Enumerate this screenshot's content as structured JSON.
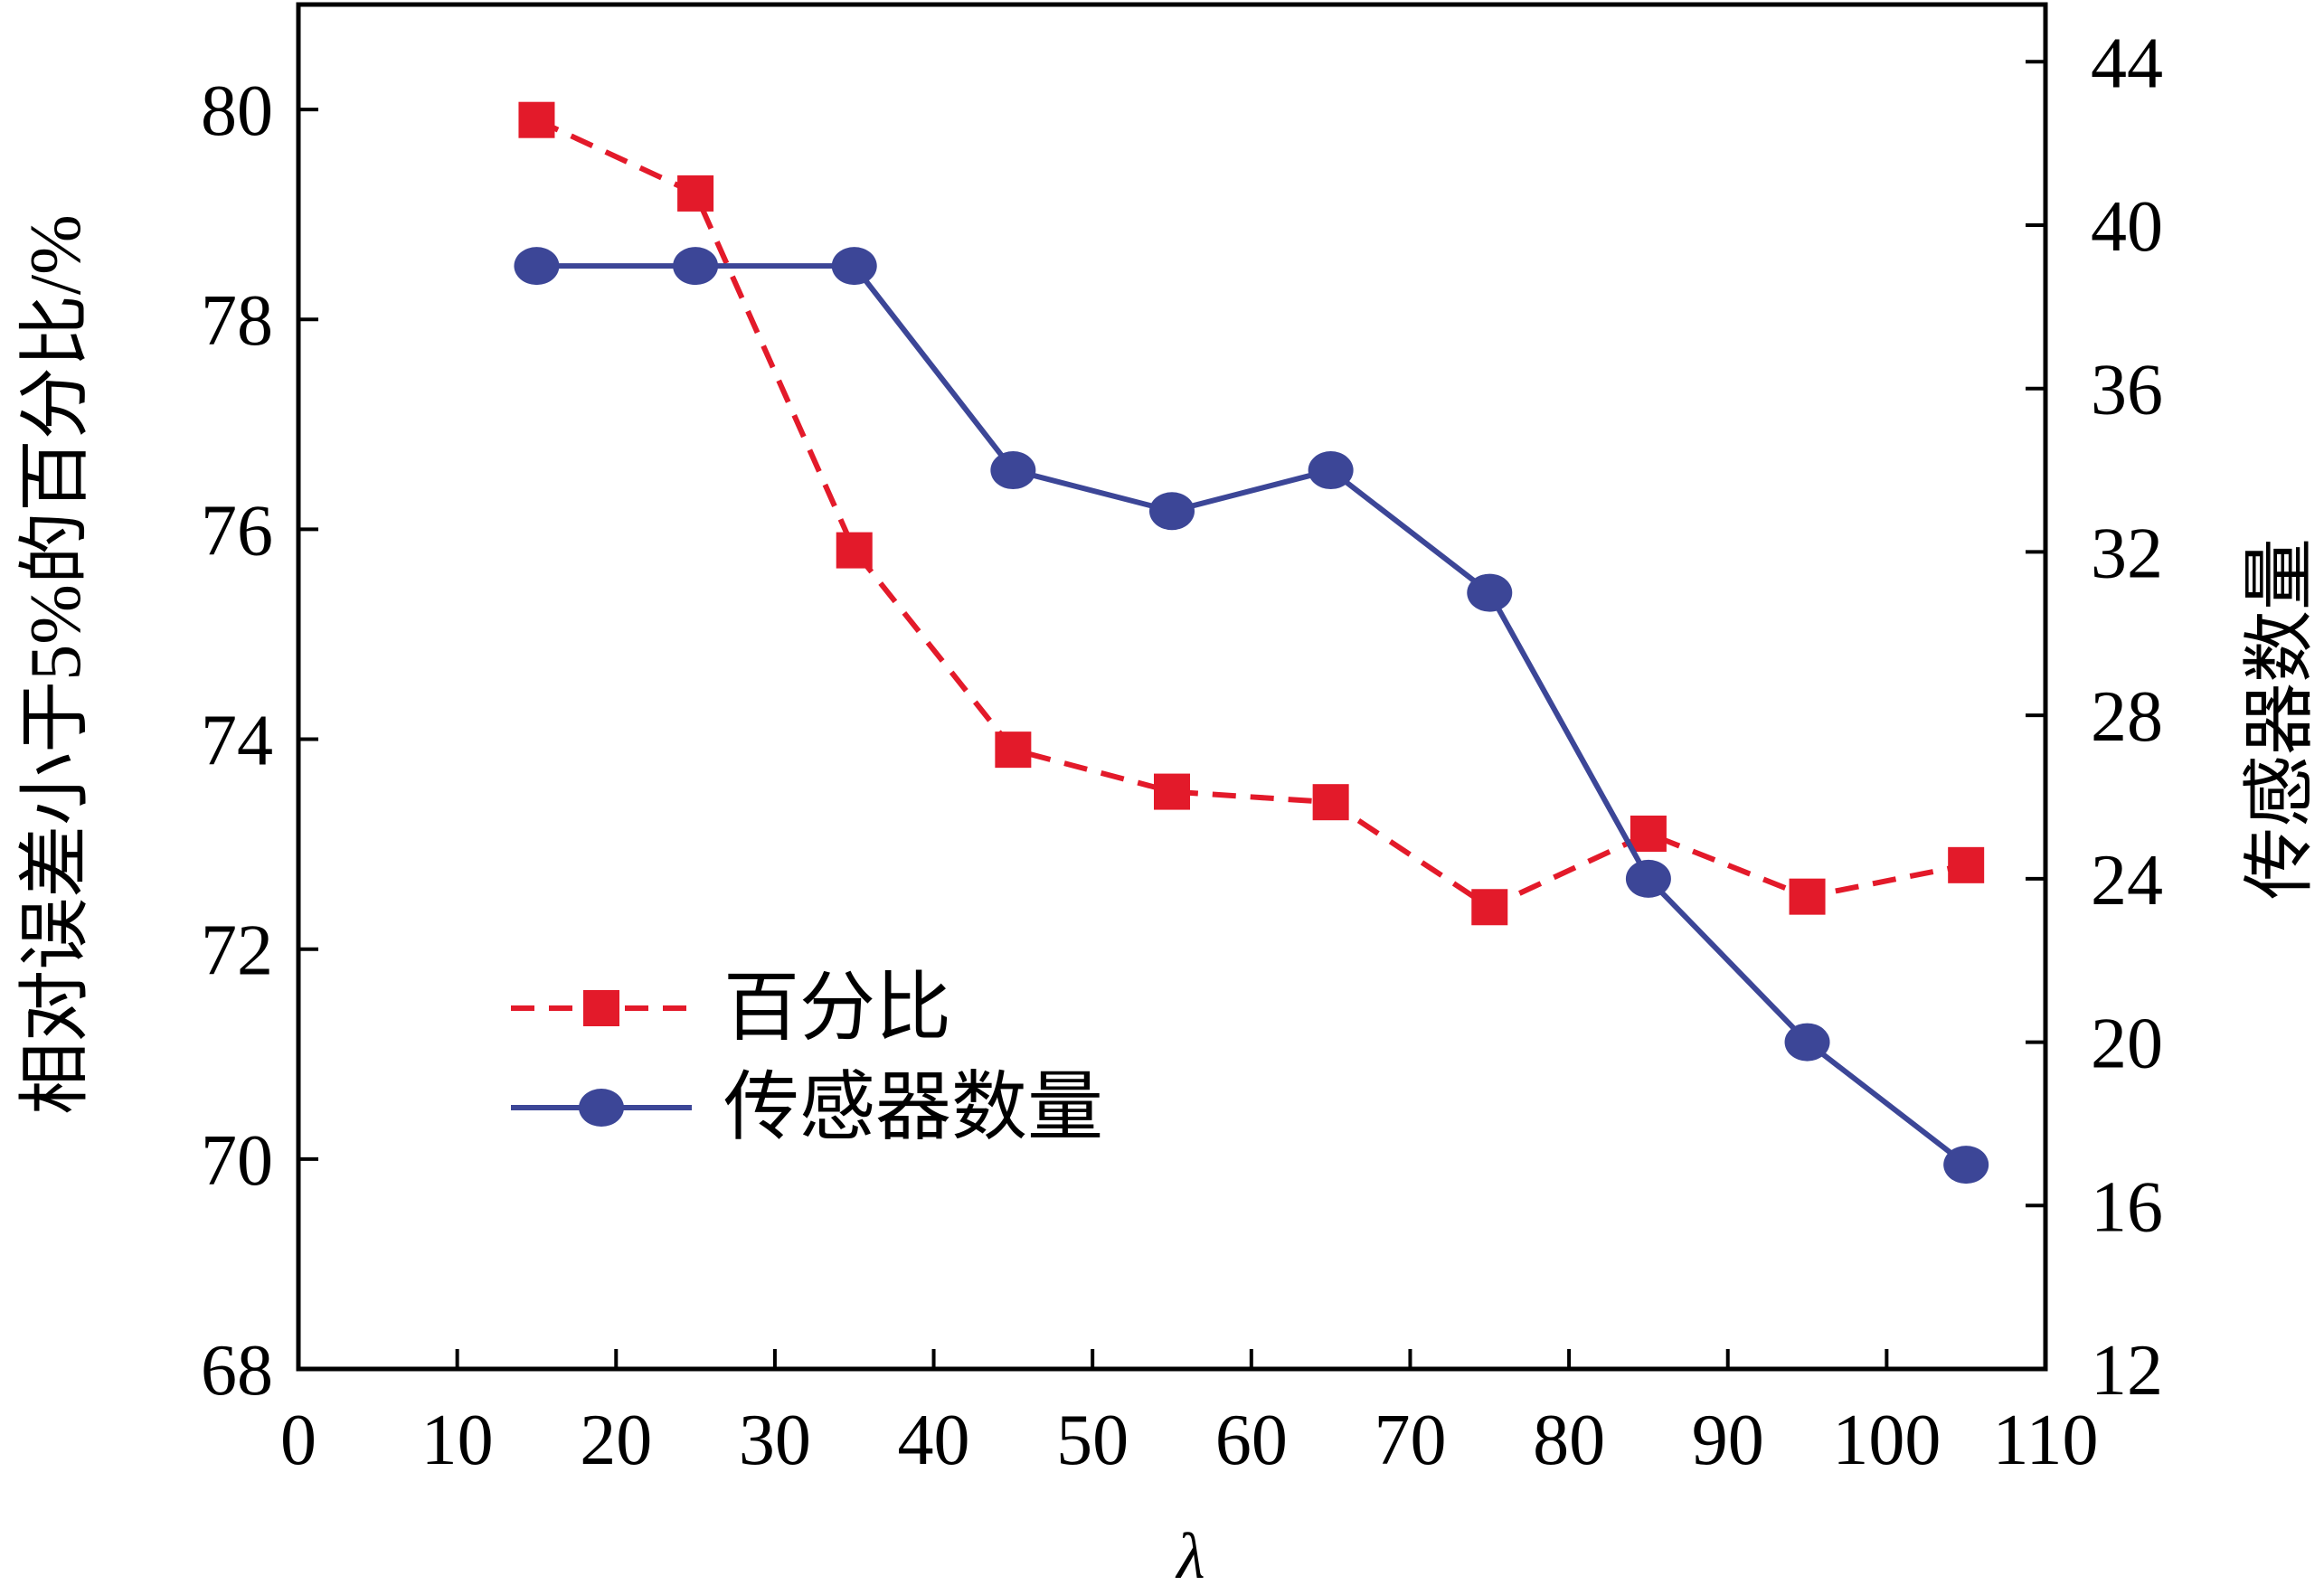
{
  "chart_data": {
    "type": "line",
    "title": "",
    "xlabel": "λ",
    "ylabel_left": "相对误差小于5%的百分比/%",
    "ylabel_right": "传感器数量",
    "xlim": [
      0,
      110
    ],
    "ylim_left": [
      68,
      81
    ],
    "ylim_right": [
      12,
      45.4
    ],
    "x_ticks": [
      0,
      10,
      20,
      30,
      40,
      50,
      60,
      70,
      80,
      90,
      100,
      110
    ],
    "y_ticks_left": [
      68,
      70,
      72,
      74,
      76,
      78,
      80
    ],
    "y_ticks_right": [
      12,
      16,
      20,
      24,
      28,
      32,
      36,
      40,
      44
    ],
    "grid": false,
    "legend_position": "lower-left",
    "series": [
      {
        "name": "百分比",
        "axis": "left",
        "color": "#e31a2a",
        "line_style": "dashed",
        "marker": "square",
        "x": [
          15,
          25,
          35,
          45,
          55,
          65,
          75,
          85,
          95,
          105
        ],
        "y": [
          79.9,
          79.2,
          75.8,
          73.9,
          73.5,
          73.4,
          72.4,
          73.1,
          72.5,
          72.8
        ]
      },
      {
        "name": "传感器数量",
        "axis": "right",
        "color": "#3c4697",
        "line_style": "solid",
        "marker": "circle",
        "x": [
          15,
          25,
          35,
          45,
          55,
          65,
          75,
          85,
          95,
          105
        ],
        "y": [
          39,
          39,
          39,
          34,
          33,
          34,
          31,
          24,
          20,
          17
        ]
      }
    ]
  }
}
